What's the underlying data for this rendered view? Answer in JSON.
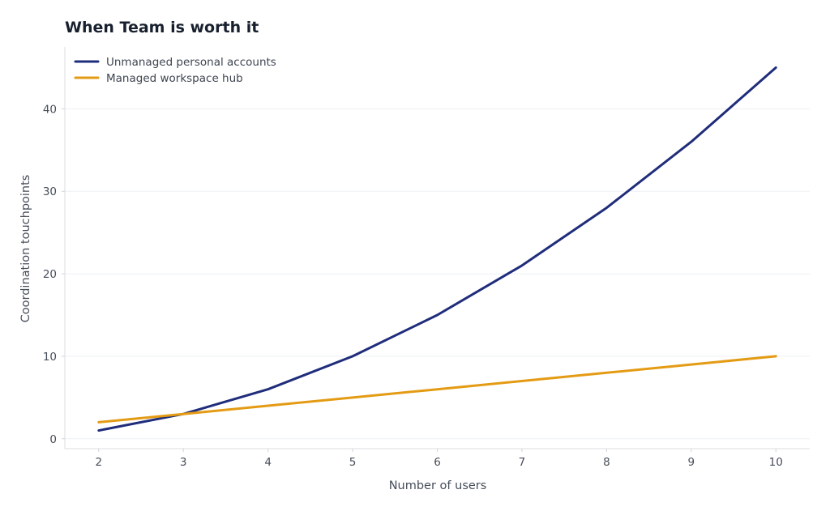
{
  "chart_data": {
    "type": "line",
    "title": "When Team is worth it",
    "xlabel": "Number of users",
    "ylabel": "Coordination touchpoints",
    "x": [
      2,
      3,
      4,
      5,
      6,
      7,
      8,
      9,
      10
    ],
    "xlim": [
      1.6,
      10.4
    ],
    "ylim": [
      -1.2,
      47.5
    ],
    "x_ticks": [
      2,
      3,
      4,
      5,
      6,
      7,
      8,
      9,
      10
    ],
    "y_ticks": [
      0,
      10,
      20,
      30,
      40
    ],
    "grid": "horizontal",
    "legend_position": "top-left",
    "series": [
      {
        "name": "Unmanaged personal accounts",
        "color": "#1f2d7b",
        "values": [
          1,
          3,
          6,
          10,
          15,
          21,
          28,
          36,
          45
        ]
      },
      {
        "name": "Managed workspace hub",
        "color": "#e49b14",
        "values": [
          2,
          3,
          4,
          5,
          6,
          7,
          8,
          9,
          10
        ]
      }
    ]
  }
}
